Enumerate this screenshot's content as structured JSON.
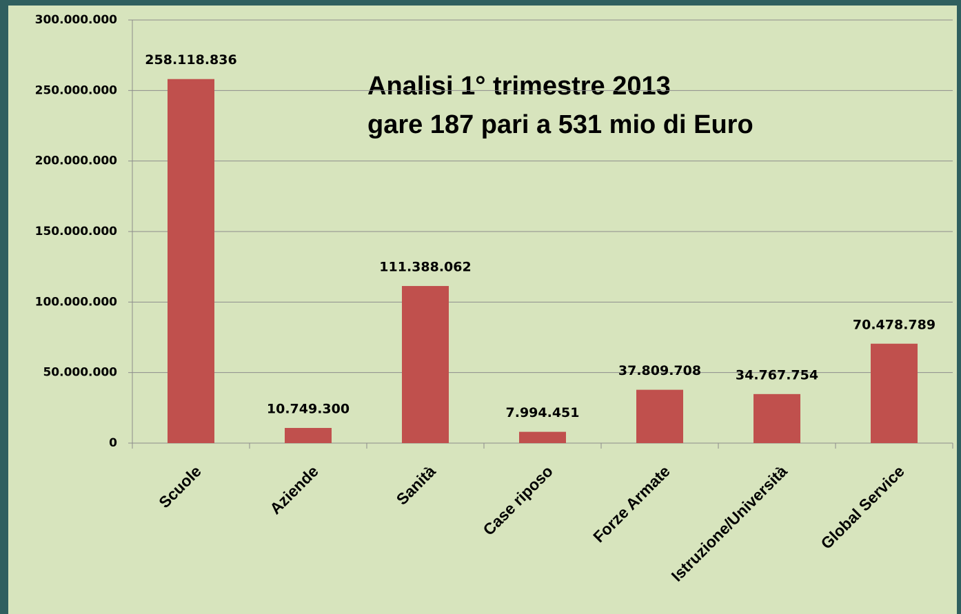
{
  "chart_data": {
    "type": "bar",
    "title": "Analisi 1° trimestre 2013",
    "subtitle": "gare 187 pari a 531 mio di Euro",
    "categories": [
      "Scuole",
      "Aziende",
      "Sanità",
      "Case riposo",
      "Forze Armate",
      "Istruzione/Università",
      "Global Service"
    ],
    "values": [
      258118836,
      10749300,
      111388062,
      7994451,
      37809708,
      34767754,
      70478789
    ],
    "value_labels": [
      "258.118.836",
      "10.749.300",
      "111.388.062",
      "7.994.451",
      "37.809.708",
      "34.767.754",
      "70.478.789"
    ],
    "color": "#c0504d",
    "ylim": [
      0,
      300000000
    ],
    "yticks": [
      0,
      {
        "value": 50000000,
        "label": "50.000.000"
      },
      {
        "value": 100000000,
        "label": "100.000.000"
      },
      {
        "value": 150000000,
        "label": "150.000.000"
      },
      {
        "value": 200000000,
        "label": "200.000.000"
      },
      {
        "value": 250000000,
        "label": "250.000.000"
      },
      {
        "value": 300000000,
        "label": "300.000.000"
      }
    ],
    "grid": true
  }
}
